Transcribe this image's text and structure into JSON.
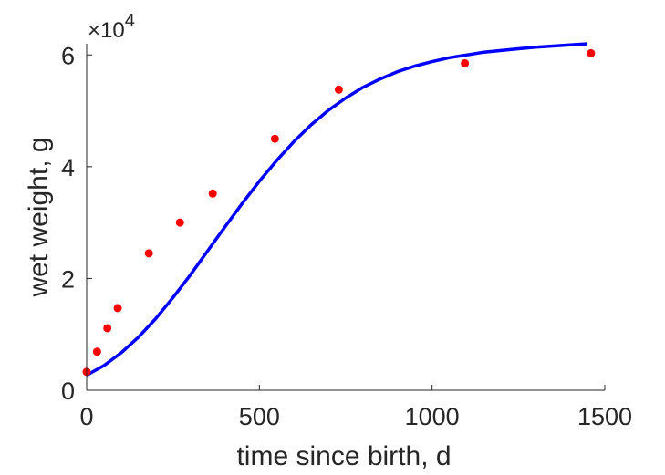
{
  "chart_data": {
    "type": "scatter",
    "xlabel": "time since birth, d",
    "ylabel": "wet weight, g",
    "xlim": [
      0,
      1500
    ],
    "ylim": [
      0,
      62000
    ],
    "x_ticks": [
      0,
      500,
      1000,
      1500
    ],
    "x_tick_labels": [
      "0",
      "500",
      "1000",
      "1500"
    ],
    "y_ticks": [
      0,
      20000,
      40000,
      60000
    ],
    "y_tick_labels": [
      "0",
      "2",
      "4",
      "6"
    ],
    "y_exponent_prefix": "×10",
    "y_exponent_power": "4",
    "grid": false,
    "series": [
      {
        "type": "scatter",
        "color": "#ff0000",
        "x": [
          0,
          30,
          60,
          90,
          180,
          270,
          365,
          545,
          730,
          1095,
          1460
        ],
        "y": [
          3300,
          6900,
          11100,
          14700,
          24500,
          30000,
          35200,
          45000,
          53800,
          58500,
          60300
        ]
      },
      {
        "type": "line",
        "color": "#0000ff",
        "x": [
          0,
          50,
          100,
          150,
          200,
          250,
          300,
          350,
          400,
          450,
          500,
          550,
          600,
          650,
          700,
          750,
          800,
          850,
          900,
          950,
          1000,
          1050,
          1100,
          1150,
          1200,
          1250,
          1300,
          1350,
          1400,
          1450
        ],
        "y": [
          2700,
          4400,
          6700,
          9500,
          12800,
          16600,
          20600,
          24900,
          29200,
          33400,
          37400,
          41100,
          44500,
          47500,
          50100,
          52300,
          54200,
          55700,
          57000,
          58000,
          58800,
          59500,
          60000,
          60500,
          60800,
          61100,
          61400,
          61600,
          61800,
          62000
        ]
      }
    ]
  }
}
